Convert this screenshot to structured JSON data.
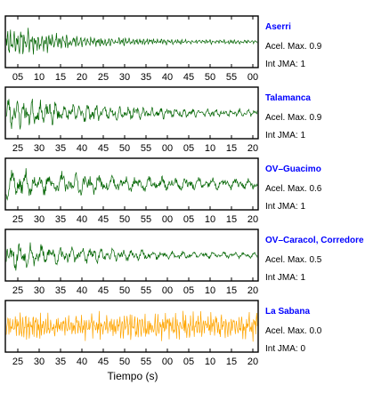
{
  "chart_data": {
    "type": "line",
    "title": "",
    "xlabel": "Tiempo (s)",
    "ylabel": "",
    "grid": false,
    "legend": "right",
    "panels": [
      {
        "station": "Aserri",
        "pga_text": "Acel. Max. 0.9",
        "jma_text": "Int JMA: 1",
        "color": "#006400",
        "xticks": [
          "05",
          "10",
          "15",
          "20",
          "25",
          "30",
          "35",
          "40",
          "45",
          "50",
          "55",
          "00"
        ],
        "trace": {
          "type": "decaying",
          "max_amp": 1.0,
          "decay": 4.0,
          "floor": 0.1,
          "freq": 1.6,
          "seed": 11
        }
      },
      {
        "station": "Talamanca",
        "pga_text": "Acel. Max. 0.9",
        "jma_text": "Int JMA: 1",
        "color": "#006400",
        "xticks": [
          "25",
          "30",
          "35",
          "40",
          "45",
          "50",
          "55",
          "00",
          "05",
          "10",
          "15",
          "20"
        ],
        "trace": {
          "type": "decaying",
          "max_amp": 0.95,
          "decay": 2.2,
          "floor": 0.12,
          "freq": 0.7,
          "seed": 23
        }
      },
      {
        "station": "OV–Guacimo",
        "pga_text": "Acel. Max. 0.6",
        "jma_text": "Int JMA: 1",
        "color": "#006400",
        "xticks": [
          "25",
          "30",
          "35",
          "40",
          "45",
          "50",
          "55",
          "00",
          "05",
          "10",
          "15",
          "20"
        ],
        "trace": {
          "type": "decaying",
          "max_amp": 0.9,
          "decay": 1.5,
          "floor": 0.15,
          "freq": 0.45,
          "seed": 37
        }
      },
      {
        "station": "OV–Caracol, Corredore",
        "pga_text": "Acel. Max. 0.5",
        "jma_text": "Int JMA: 1",
        "color": "#006400",
        "xticks": [
          "25",
          "30",
          "35",
          "40",
          "45",
          "50",
          "55",
          "00",
          "05",
          "10",
          "15",
          "20"
        ],
        "trace": {
          "type": "decaying",
          "max_amp": 0.95,
          "decay": 2.6,
          "floor": 0.1,
          "freq": 0.55,
          "seed": 53
        }
      },
      {
        "station": "La Sabana",
        "pga_text": "Acel. Max. 0.0",
        "jma_text": "Int JMA: 0",
        "color": "#FFA500",
        "xticks": [
          "25",
          "30",
          "35",
          "40",
          "45",
          "50",
          "55",
          "00",
          "05",
          "10",
          "15",
          "20"
        ],
        "trace": {
          "type": "noise",
          "max_amp": 0.8,
          "decay": 0,
          "floor": 0.8,
          "freq": 2.2,
          "seed": 71
        }
      }
    ]
  }
}
